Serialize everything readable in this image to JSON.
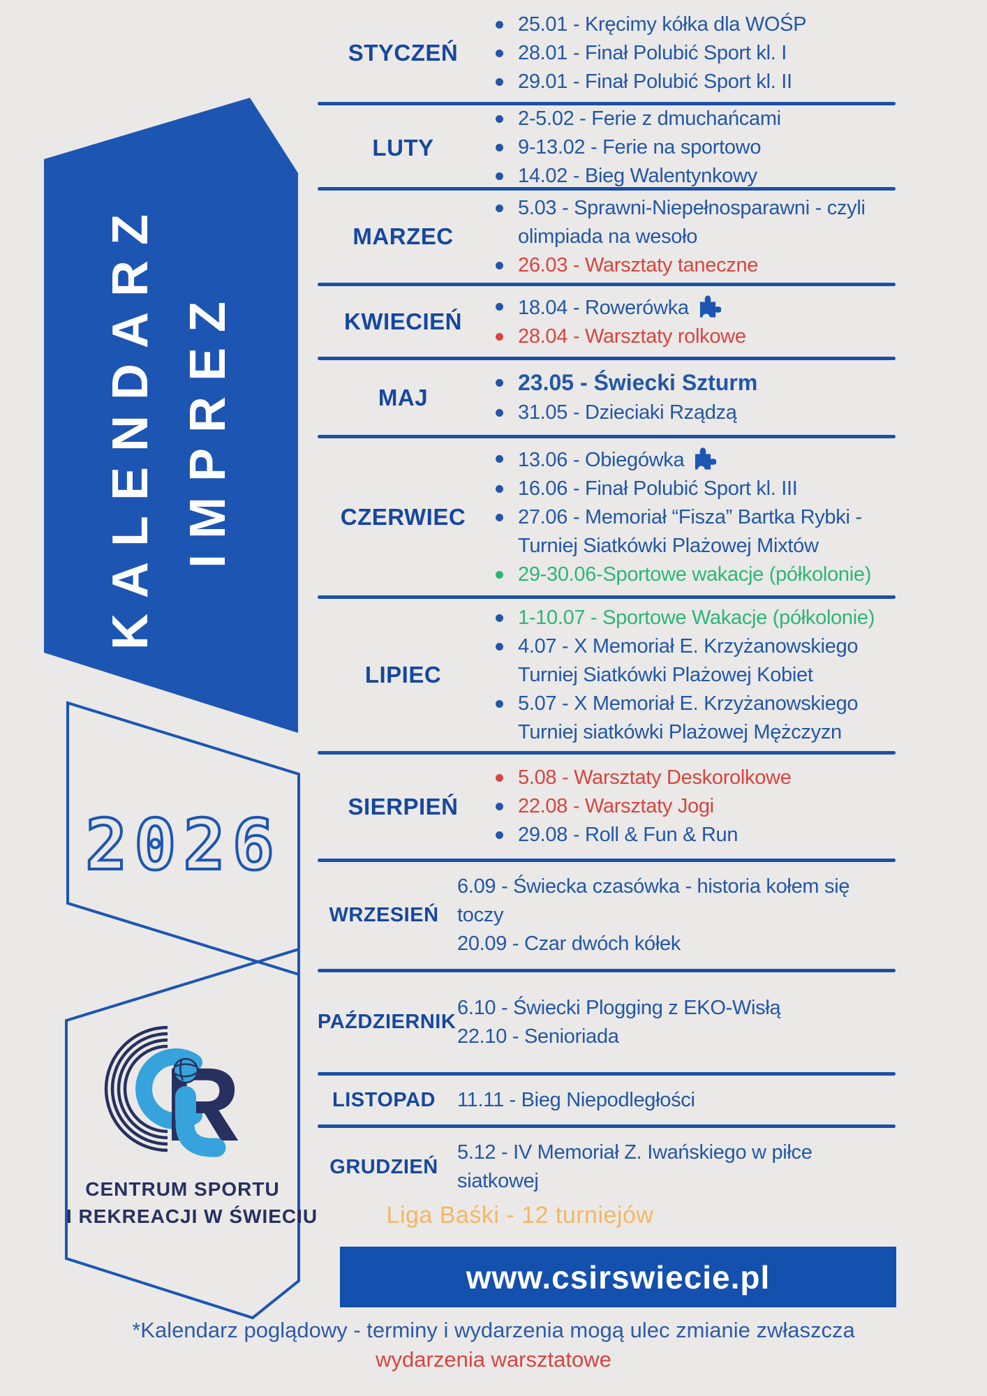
{
  "poster": {
    "title_line1": "KALENDARZ",
    "title_line2": "IMPREZ",
    "year": "2026",
    "logo": {
      "caption_line1": "CENTRUM SPORTU",
      "caption_line2": "I REKREACJI W ŚWIECIU"
    },
    "league_note": "Liga Baśki - 12 turniejów",
    "website": "www.csirswiecie.pl",
    "footnote_line1": "*Kalendarz poglądowy - terminy i wydarzenia mogą ulec zmianie zwłaszcza",
    "footnote_line2": "wydarzenia warsztatowe",
    "colors": {
      "background": "#eae9e7",
      "accent_blue": "#1d55b2",
      "text_blue": "#2356a7",
      "label_blue": "#17479e",
      "red": "#d8443f",
      "green": "#2eb577",
      "orange": "#f3b765",
      "navy": "#27305f",
      "light_blue": "#36a3dc",
      "white": "#ffffff"
    }
  },
  "months": [
    {
      "name": "STYCZEŃ",
      "events": [
        {
          "text": "25.01 - Kręcimy kółka dla WOŚP",
          "color": "blue",
          "bullet": "blue"
        },
        {
          "text": "28.01 - Finał Polubić Sport kl. I",
          "color": "blue",
          "bullet": "blue"
        },
        {
          "text": "29.01 - Finał Polubić Sport kl. II",
          "color": "blue",
          "bullet": "blue"
        }
      ]
    },
    {
      "name": "LUTY",
      "events": [
        {
          "text": "2-5.02 - Ferie z dmuchańcami",
          "color": "blue",
          "bullet": "blue"
        },
        {
          "text": "9-13.02 - Ferie na sportowo",
          "color": "blue",
          "bullet": "blue"
        },
        {
          "text": "14.02 - Bieg Walentynkowy",
          "color": "blue",
          "bullet": "blue"
        }
      ]
    },
    {
      "name": "MARZEC",
      "events": [
        {
          "text": "5.03 - Sprawni-Niepełnosparawni - czyli olimpiada na wesoło",
          "color": "blue",
          "bullet": "blue"
        },
        {
          "text": "26.03 - Warsztaty taneczne",
          "color": "red",
          "bullet": "blue"
        }
      ]
    },
    {
      "name": "KWIECIEŃ",
      "events": [
        {
          "text": "18.04 - Rowerówka",
          "color": "blue",
          "bullet": "blue",
          "icon": "puzzle-icon"
        },
        {
          "text": "28.04 - Warsztaty rolkowe",
          "color": "red",
          "bullet": "red"
        }
      ]
    },
    {
      "name": "MAJ",
      "events": [
        {
          "text": "23.05 - Świecki Szturm",
          "color": "blue",
          "bullet": "blue",
          "bold": true
        },
        {
          "text": "31.05 - Dzieciaki Rządzą",
          "color": "blue",
          "bullet": "blue"
        }
      ]
    },
    {
      "name": "CZERWIEC",
      "events": [
        {
          "text": "13.06 - Obiegówka",
          "color": "blue",
          "bullet": "blue",
          "icon": "puzzle-icon"
        },
        {
          "text": "16.06 - Finał Polubić Sport kl. III",
          "color": "blue",
          "bullet": "blue"
        },
        {
          "text": "27.06 - Memoriał “Fisza” Bartka Rybki - Turniej Siatkówki Plażowej Mixtów",
          "color": "blue",
          "bullet": "blue"
        },
        {
          "text": "29-30.06-Sportowe wakacje (półkolonie)",
          "color": "green",
          "bullet": "green"
        }
      ]
    },
    {
      "name": "LIPIEC",
      "events": [
        {
          "text": "1-10.07 - Sportowe Wakacje (półkolonie)",
          "color": "green",
          "bullet": "blue"
        },
        {
          "text": "4.07 - X Memoriał E. Krzyżanowskiego Turniej Siatkówki Plażowej Kobiet",
          "color": "blue",
          "bullet": "blue"
        },
        {
          "text": "5.07 - X Memoriał E. Krzyżanowskiego Turniej siatkówki Plażowej Mężczyzn",
          "color": "blue",
          "bullet": "blue"
        }
      ]
    },
    {
      "name": "SIERPIEŃ",
      "events": [
        {
          "text": "5.08 - Warsztaty Deskorolkowe",
          "color": "red",
          "bullet": "red"
        },
        {
          "text": "22.08 - Warsztaty Jogi",
          "color": "red",
          "bullet": "blue"
        },
        {
          "text": "29.08 - Roll & Fun & Run",
          "color": "blue",
          "bullet": "blue"
        }
      ]
    },
    {
      "name": "WRZESIEŃ",
      "events": [
        {
          "text": "6.09 - Świecka czasówka - historia kołem się toczy",
          "color": "blue",
          "bullet": "none"
        },
        {
          "text": "20.09 - Czar dwóch kółek",
          "color": "blue",
          "bullet": "none"
        }
      ]
    },
    {
      "name": "PAŹDZIERNIK",
      "events": [
        {
          "text": "6.10 - Świecki Plogging z EKO-Wisłą",
          "color": "blue",
          "bullet": "none"
        },
        {
          "text": "22.10 - Senioriada",
          "color": "blue",
          "bullet": "none"
        }
      ]
    },
    {
      "name": "LISTOPAD",
      "events": [
        {
          "text": "11.11 - Bieg Niepodległości",
          "color": "blue",
          "bullet": "none"
        }
      ]
    },
    {
      "name": "GRUDZIEŃ",
      "events": [
        {
          "text": "5.12 - IV Memoriał Z. Iwańskiego w piłce siatkowej",
          "color": "blue",
          "bullet": "none"
        }
      ]
    }
  ]
}
